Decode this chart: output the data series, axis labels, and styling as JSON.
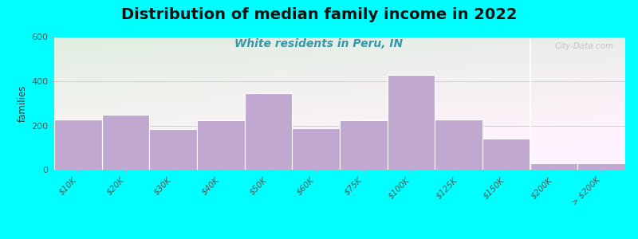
{
  "title": "Distribution of median family income in 2022",
  "subtitle": "White residents in Peru, IN",
  "ylabel": "families",
  "background_outer": "#00FFFF",
  "bar_color": "#C0A8D0",
  "categories": [
    "$10K",
    "$20K",
    "$30K",
    "$40K",
    "$50K",
    "$60K",
    "$75K",
    "$100K",
    "$125K",
    "$150K",
    "$200K",
    "> $200K"
  ],
  "values": [
    228,
    248,
    183,
    225,
    345,
    187,
    222,
    430,
    228,
    140,
    28,
    28
  ],
  "ylim": [
    0,
    600
  ],
  "yticks": [
    0,
    200,
    400,
    600
  ],
  "title_fontsize": 14,
  "subtitle_fontsize": 10,
  "watermark": "City-Data.com",
  "bg_left_top": "#ddeedd",
  "bg_right_top": "#eef5ee",
  "bg_bottom": "#f8fff8"
}
